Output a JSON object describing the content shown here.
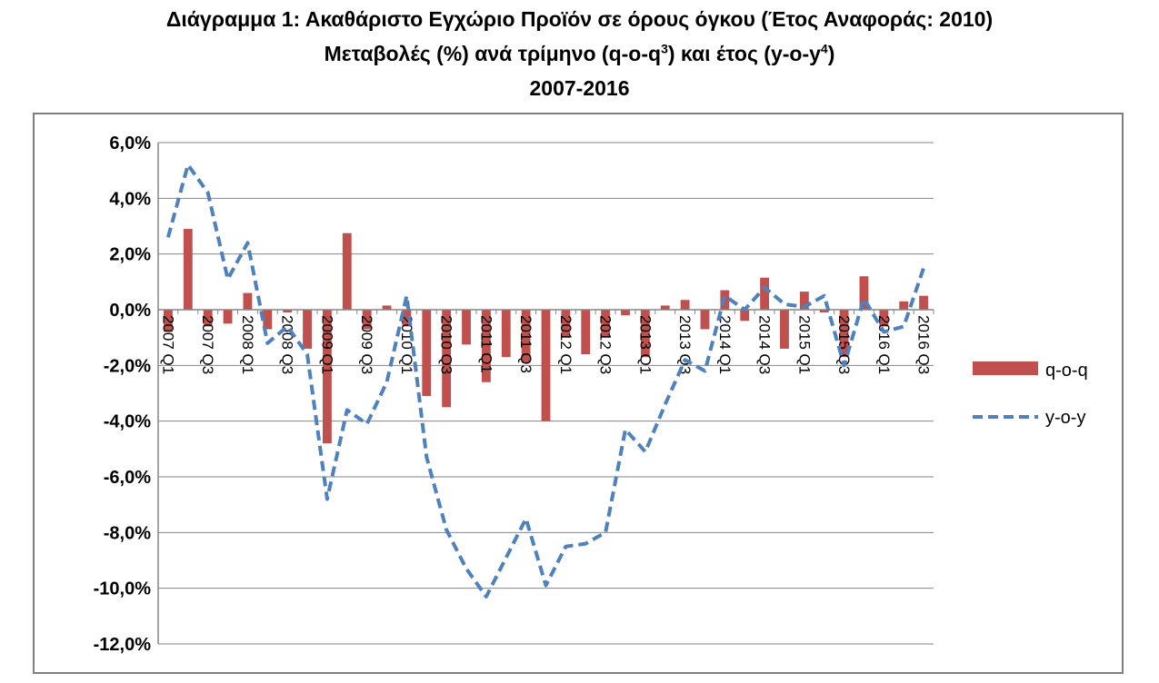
{
  "header": {
    "title_line1": "Διάγραμμα 1: Ακαθάριστο Εγχώριο Προϊόν σε όρους όγκου (Έτος Αναφοράς: 2010)",
    "title_line2": "Μεταβολές (%) ανά τρίμηνο (q-o-q",
    "title_line2_sup1": "3",
    "title_line2_mid": ") και έτος (y-o-y",
    "title_line2_sup2": "4",
    "title_line2_end": ")",
    "title_line3": "2007-2016"
  },
  "colors": {
    "bar": "#c0504d",
    "line": "#4f81bd",
    "grid": "#868686",
    "axis": "#868686"
  },
  "chart_data": {
    "type": "bar",
    "title": "Διάγραμμα 1: Ακαθάριστο Εγχώριο Προϊόν σε όρους όγκου (Έτος Αναφοράς: 2010) Μεταβολές (%) ανά τρίμηνο (q-o-q3) και έτος (y-o-y4) 2007-2016",
    "categories": [
      "2007 Q1",
      "2007 Q2",
      "2007 Q3",
      "2007 Q4",
      "2008 Q1",
      "2008 Q2",
      "2008 Q3",
      "2008 Q4",
      "2009 Q1",
      "2009 Q2",
      "2009 Q3",
      "2009 Q4",
      "2010 Q1",
      "2010 Q2",
      "2010 Q3",
      "2010 Q4",
      "2011 Q1",
      "2011 Q2",
      "2011 Q3",
      "2011 Q4",
      "2012 Q1",
      "2012 Q2",
      "2012 Q3",
      "2012 Q4",
      "2013 Q1",
      "2013 Q2",
      "2013 Q3",
      "2013 Q4",
      "2014 Q1",
      "2014 Q2",
      "2014 Q3",
      "2014 Q4",
      "2015 Q1",
      "2015 Q2",
      "2015 Q3",
      "2015 Q4",
      "2016 Q1",
      "2016 Q2",
      "2016 Q3"
    ],
    "tick_labels": [
      "2007 Q1",
      "",
      "2007 Q3",
      "",
      "2008 Q1",
      "",
      "2008 Q3",
      "",
      "2009 Q1",
      "",
      "2009 Q3",
      "",
      "2010 Q1",
      "",
      "2010 Q3",
      "",
      "2011 Q1",
      "",
      "2011 Q3",
      "",
      "2012 Q1",
      "",
      "2012 Q3",
      "",
      "2013 Q1",
      "",
      "2013 Q3",
      "",
      "2014 Q1",
      "",
      "2014 Q3",
      "",
      "2015 Q1",
      "",
      "2015 Q3",
      "",
      "2016 Q1",
      "",
      "2016 Q3"
    ],
    "series": [
      {
        "name": "q-o-q",
        "type": "bar",
        "values": [
          -0.8,
          2.9,
          -0.6,
          -0.5,
          0.6,
          -0.7,
          -0.1,
          -1.4,
          -4.8,
          2.75,
          -0.7,
          0.15,
          -0.6,
          -3.1,
          -3.5,
          -1.25,
          -2.6,
          -1.7,
          -1.9,
          -4.0,
          -1.0,
          -1.6,
          -1.0,
          -0.2,
          -1.7,
          0.15,
          0.35,
          -0.7,
          0.7,
          -0.4,
          1.15,
          -1.4,
          0.65,
          -0.1,
          -1.7,
          1.2,
          -0.6,
          0.3,
          0.5
        ]
      },
      {
        "name": "y-o-y",
        "type": "line",
        "values": [
          2.6,
          5.2,
          4.2,
          1.1,
          2.4,
          -1.2,
          -0.6,
          -1.6,
          -6.8,
          -3.6,
          -4.1,
          -2.6,
          0.5,
          -5.3,
          -7.9,
          -9.3,
          -10.3,
          -8.9,
          -7.5,
          -9.9,
          -8.5,
          -8.4,
          -8.0,
          -4.3,
          -5.1,
          -3.4,
          -1.8,
          -2.2,
          0.5,
          0.0,
          0.8,
          0.2,
          0.1,
          0.5,
          -2.0,
          0.4,
          -0.8,
          -0.6,
          1.5
        ]
      }
    ],
    "y_ticks": [
      "6,0%",
      "4,0%",
      "2,0%",
      "0,0%",
      "-2,0%",
      "-4,0%",
      "-6,0%",
      "-8,0%",
      "-10,0%",
      "-12,0%"
    ],
    "ylim": [
      -12,
      6
    ],
    "y_step": 2,
    "legend": [
      "q-o-q",
      "y-o-y"
    ],
    "legend_position": "right",
    "grid": true
  }
}
